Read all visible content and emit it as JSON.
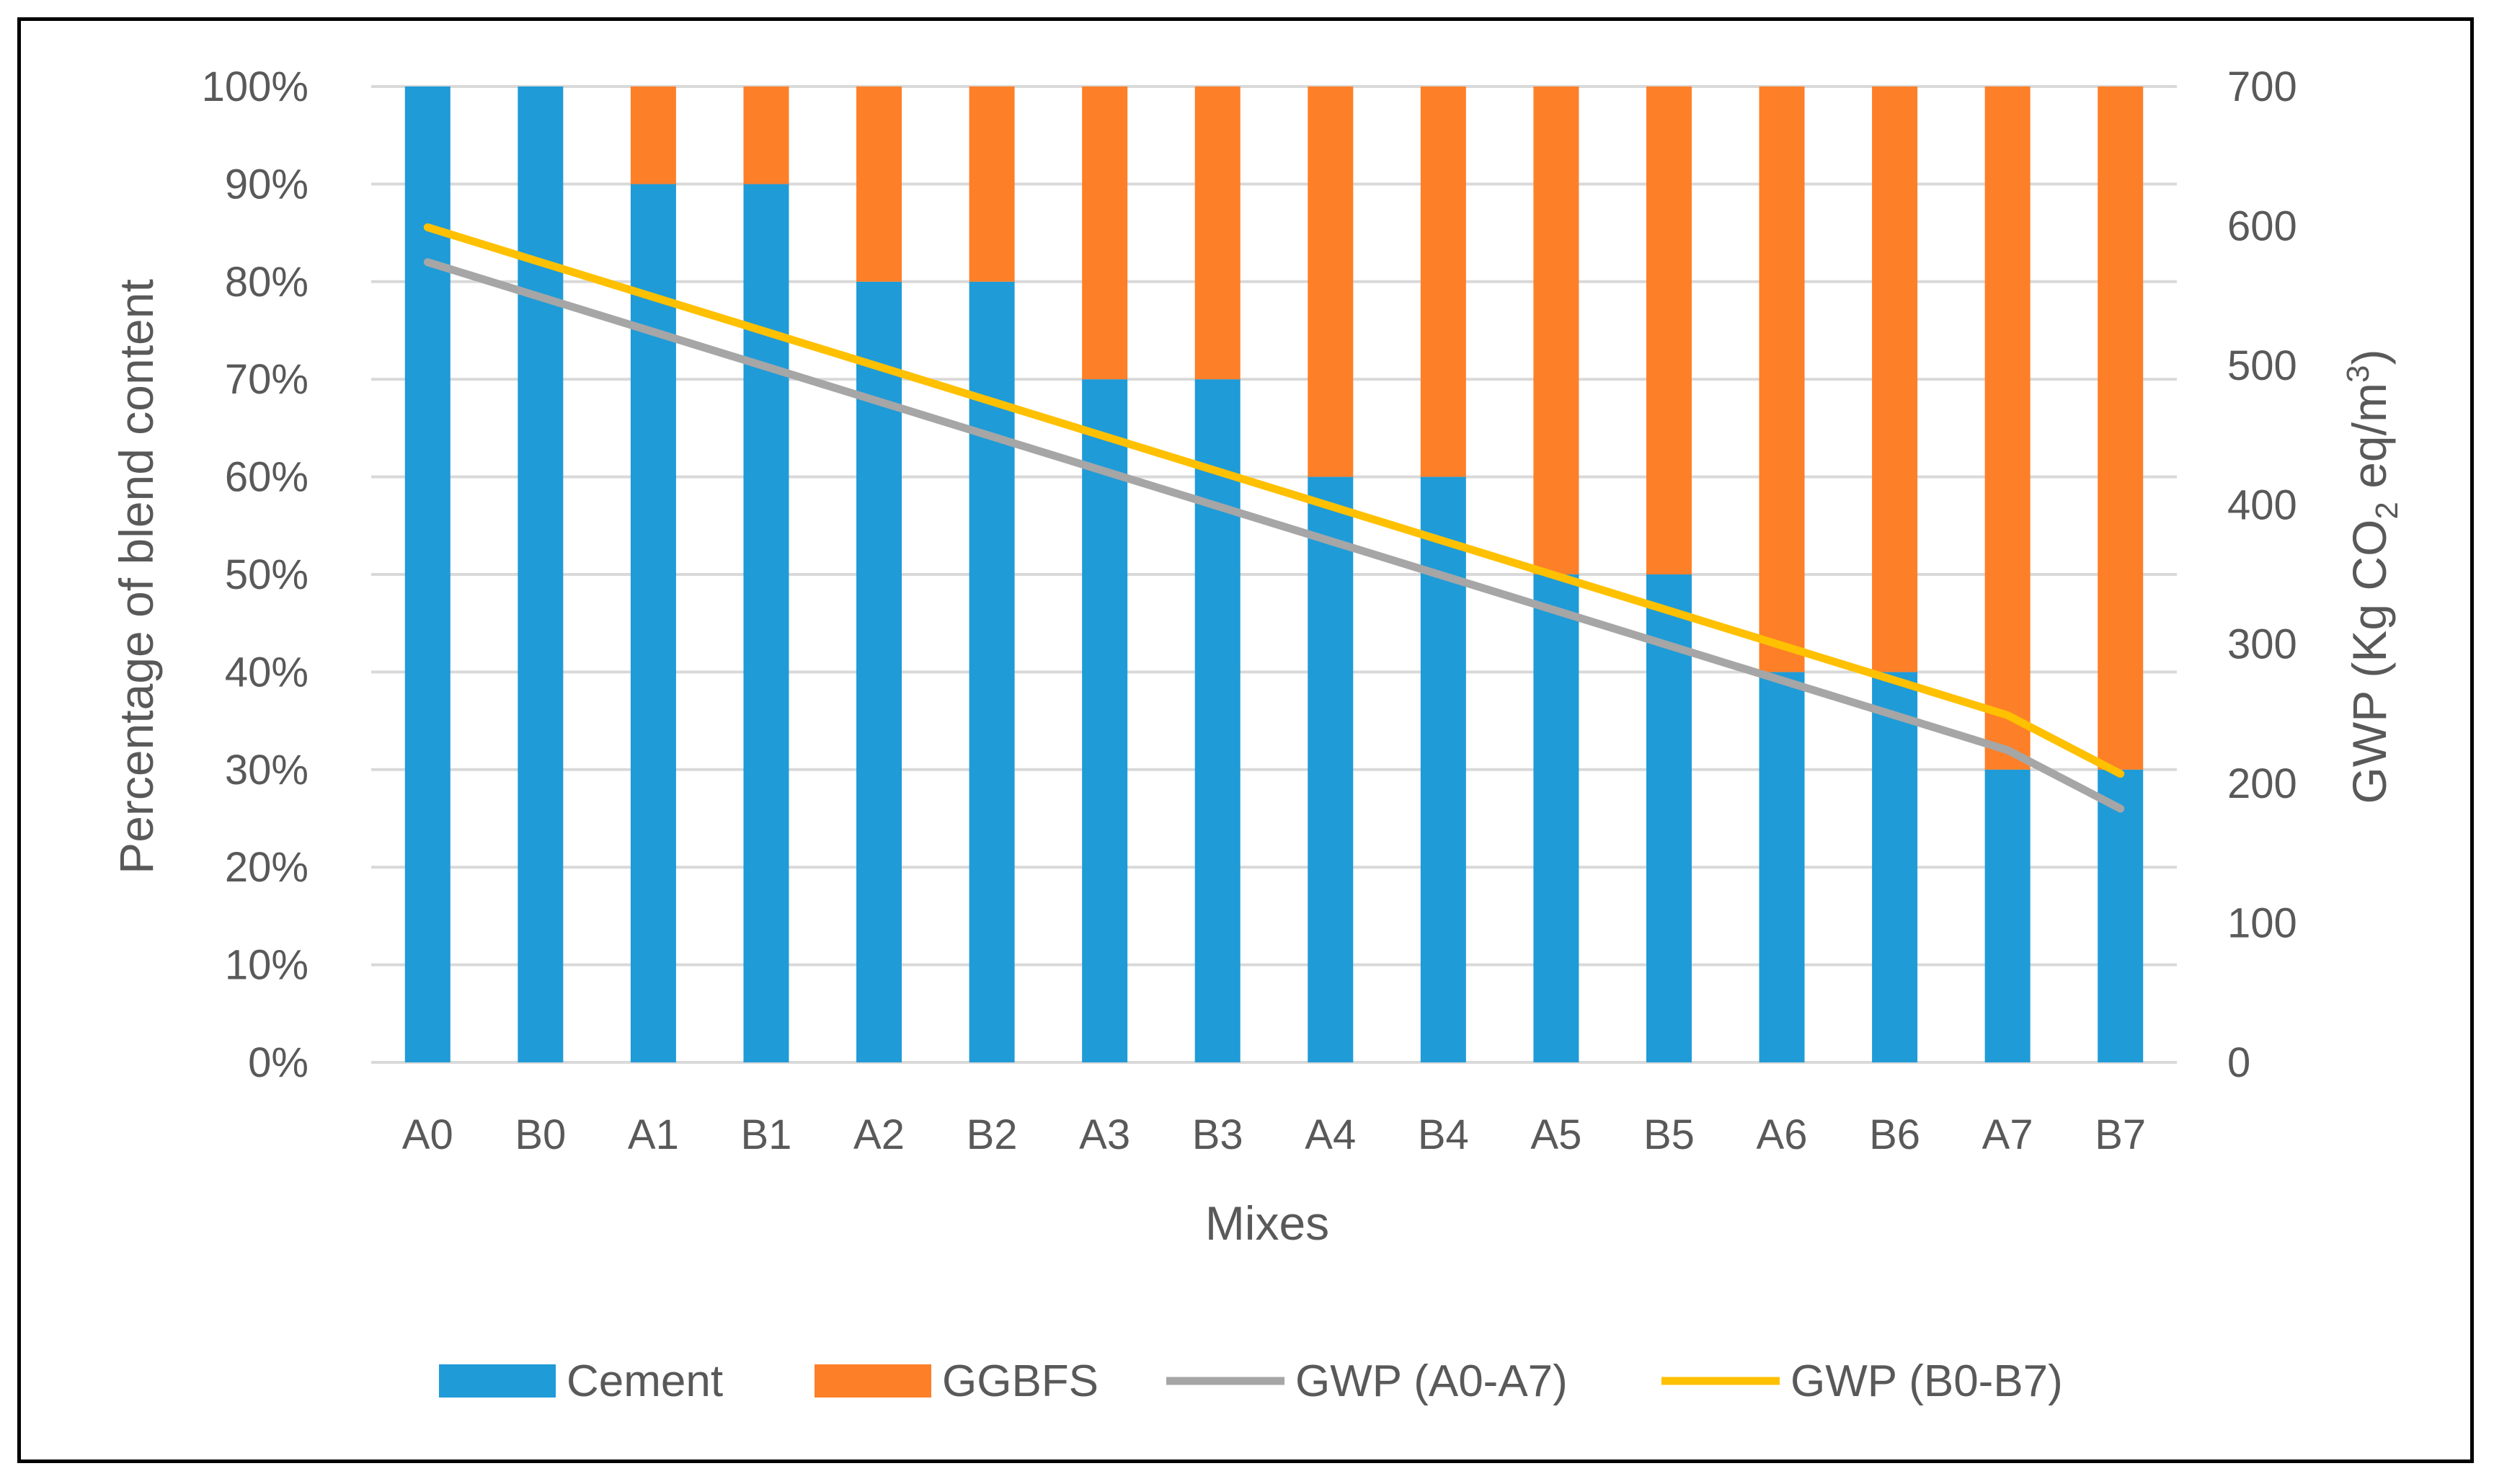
{
  "colors": {
    "cement": "#1f9bd7",
    "ggbfs": "#fd7f28",
    "gwp_a": "#a6a6a6",
    "gwp_b": "#ffc000",
    "grid": "#d9d9d9",
    "text": "#595959"
  },
  "chart_data": {
    "type": "bar",
    "stacked": true,
    "categories": [
      "A0",
      "B0",
      "A1",
      "B1",
      "A2",
      "B2",
      "A3",
      "B3",
      "A4",
      "B4",
      "A5",
      "B5",
      "A6",
      "B6",
      "A7",
      "B7"
    ],
    "series": [
      {
        "name": "Cement",
        "type": "bar",
        "axis": "left",
        "values": [
          100,
          100,
          90,
          90,
          80,
          80,
          70,
          70,
          60,
          60,
          50,
          50,
          40,
          40,
          30,
          30
        ]
      },
      {
        "name": "GGBFS",
        "type": "bar",
        "axis": "left",
        "values": [
          0,
          0,
          10,
          10,
          20,
          20,
          30,
          30,
          40,
          40,
          50,
          50,
          60,
          60,
          70,
          70
        ]
      },
      {
        "name": "GWP (A0-A7)",
        "type": "line",
        "axis": "right",
        "values": [
          574,
          549,
          524,
          499,
          474,
          449,
          424,
          399,
          374,
          349,
          324,
          299,
          274,
          249,
          224,
          182
        ]
      },
      {
        "name": "GWP (B0-B7)",
        "type": "line",
        "axis": "right",
        "values": [
          599,
          574,
          549,
          524,
          499,
          474,
          449,
          424,
          399,
          374,
          349,
          324,
          299,
          274,
          249,
          207
        ]
      }
    ],
    "xlabel": "Mixes",
    "ylabel": "Percentage of blend content",
    "y2label_prefix": "GWP (Kg CO",
    "y2label_sub": "2",
    "y2label_mid": " eq/m",
    "y2label_sup": "3",
    "y2label_suffix": ")",
    "ylim": [
      0,
      100
    ],
    "y2lim": [
      0,
      700
    ],
    "yticks": [
      "0%",
      "10%",
      "20%",
      "30%",
      "40%",
      "50%",
      "60%",
      "70%",
      "80%",
      "90%",
      "100%"
    ],
    "y2ticks": [
      "0",
      "100",
      "200",
      "300",
      "400",
      "500",
      "600",
      "700"
    ],
    "legend_position": "bottom",
    "grid": true
  }
}
